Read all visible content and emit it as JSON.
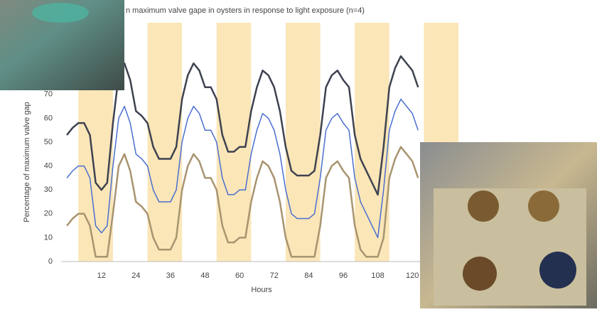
{
  "chart_data": {
    "type": "line",
    "title": "n maximum valve gape in oysters in response to light exposure (n=4)",
    "x_label": "Hours",
    "y_label": "Percentage of maximum valve gap",
    "x": [
      0,
      2,
      4,
      6,
      8,
      10,
      12,
      14,
      16,
      18,
      20,
      22,
      24,
      26,
      28,
      30,
      32,
      34,
      36,
      38,
      40,
      42,
      44,
      46,
      48,
      50,
      52,
      54,
      56,
      58,
      60,
      62,
      64,
      66,
      68,
      70,
      72,
      74,
      76,
      78,
      80,
      82,
      84,
      86,
      88,
      90,
      92,
      94,
      96,
      98,
      100,
      102,
      104,
      106,
      108,
      110,
      112,
      114,
      116,
      118,
      120,
      122
    ],
    "series": [
      {
        "color": "#3e4250",
        "values": [
          53,
          56,
          58,
          58,
          53,
          33,
          30,
          33,
          58,
          78,
          83,
          76,
          63,
          61,
          58,
          48,
          43,
          43,
          43,
          48,
          68,
          78,
          83,
          80,
          73,
          73,
          68,
          53,
          46,
          46,
          48,
          48,
          63,
          73,
          80,
          78,
          73,
          63,
          48,
          38,
          36,
          36,
          36,
          38,
          53,
          73,
          78,
          80,
          76,
          73,
          53,
          43,
          38,
          33,
          28,
          48,
          73,
          81,
          86,
          83,
          80,
          73
        ]
      },
      {
        "color": "#a89470",
        "values": [
          15,
          18,
          20,
          20,
          15,
          2,
          2,
          2,
          20,
          40,
          45,
          38,
          25,
          23,
          20,
          10,
          5,
          5,
          5,
          10,
          30,
          40,
          45,
          42,
          35,
          35,
          30,
          15,
          8,
          8,
          10,
          10,
          25,
          35,
          42,
          40,
          35,
          25,
          10,
          2,
          2,
          2,
          2,
          2,
          15,
          35,
          40,
          42,
          38,
          35,
          15,
          5,
          2,
          2,
          2,
          10,
          35,
          43,
          48,
          45,
          42,
          35
        ]
      },
      {
        "color": "#4a6fd0",
        "values": [
          35,
          38,
          40,
          40,
          35,
          15,
          12,
          15,
          40,
          60,
          65,
          58,
          45,
          43,
          40,
          30,
          25,
          25,
          25,
          30,
          50,
          60,
          65,
          62,
          55,
          55,
          50,
          35,
          28,
          28,
          30,
          30,
          45,
          55,
          62,
          60,
          55,
          45,
          30,
          20,
          18,
          18,
          18,
          20,
          35,
          55,
          60,
          62,
          58,
          55,
          35,
          25,
          20,
          15,
          10,
          30,
          55,
          63,
          68,
          65,
          62,
          55
        ]
      }
    ],
    "shaded": [
      [
        4,
        16
      ],
      [
        28,
        40
      ],
      [
        52,
        64
      ],
      [
        76,
        88
      ],
      [
        100,
        112
      ],
      [
        124,
        136
      ]
    ],
    "shade_color": "#fbe6b8",
    "xlim": [
      -2,
      136
    ],
    "ylim": [
      0,
      100
    ],
    "xticks": [
      12,
      24,
      36,
      48,
      60,
      72,
      84,
      96,
      108,
      120
    ],
    "yticks": [
      0,
      10,
      20,
      30,
      40,
      50,
      60,
      70
    ]
  }
}
